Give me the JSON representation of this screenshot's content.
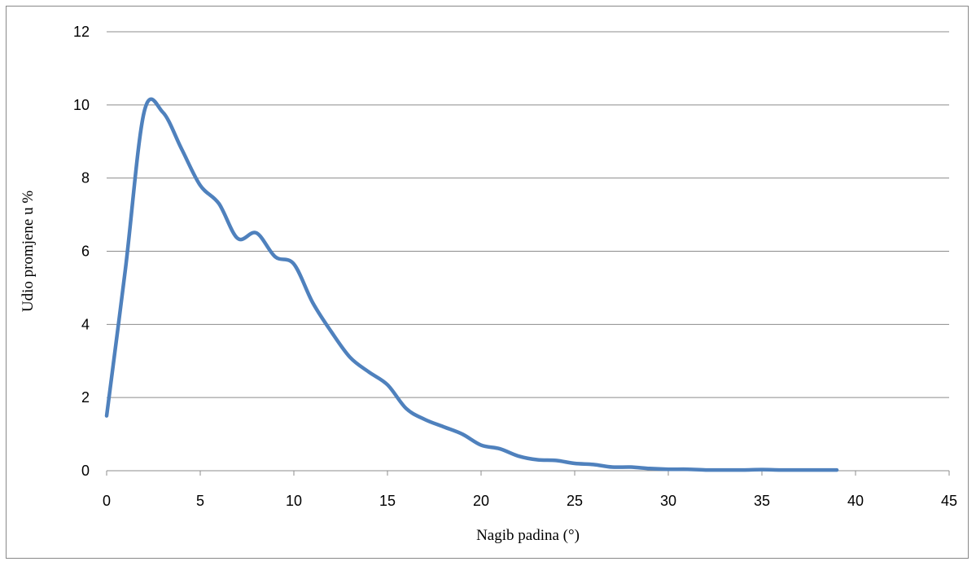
{
  "chart_data": {
    "type": "line",
    "title": "",
    "xlabel": "Nagib padina (°)",
    "ylabel": "Udio promjene u %",
    "xlim": [
      0,
      45
    ],
    "ylim": [
      0,
      12
    ],
    "xticks": [
      0,
      5,
      10,
      15,
      20,
      25,
      30,
      35,
      40,
      45
    ],
    "yticks": [
      0,
      2,
      4,
      6,
      8,
      10,
      12
    ],
    "grid": "horizontal",
    "legend": "none",
    "series": [
      {
        "color": "#4f81bd",
        "x": [
          0,
          1,
          2,
          3,
          4,
          5,
          6,
          7,
          8,
          9,
          10,
          11,
          12,
          13,
          14,
          15,
          16,
          17,
          18,
          19,
          20,
          21,
          22,
          23,
          24,
          25,
          26,
          27,
          28,
          29,
          30,
          31,
          32,
          33,
          34,
          35,
          36,
          37,
          38,
          39
        ],
        "y": [
          1.5,
          5.5,
          9.8,
          9.8,
          8.8,
          7.8,
          7.3,
          6.35,
          6.5,
          5.85,
          5.65,
          4.6,
          3.8,
          3.1,
          2.7,
          2.35,
          1.7,
          1.4,
          1.2,
          1.0,
          0.7,
          0.6,
          0.4,
          0.3,
          0.28,
          0.2,
          0.17,
          0.1,
          0.1,
          0.06,
          0.04,
          0.04,
          0.02,
          0.02,
          0.02,
          0.03,
          0.02,
          0.02,
          0.02,
          0.02
        ]
      }
    ]
  }
}
